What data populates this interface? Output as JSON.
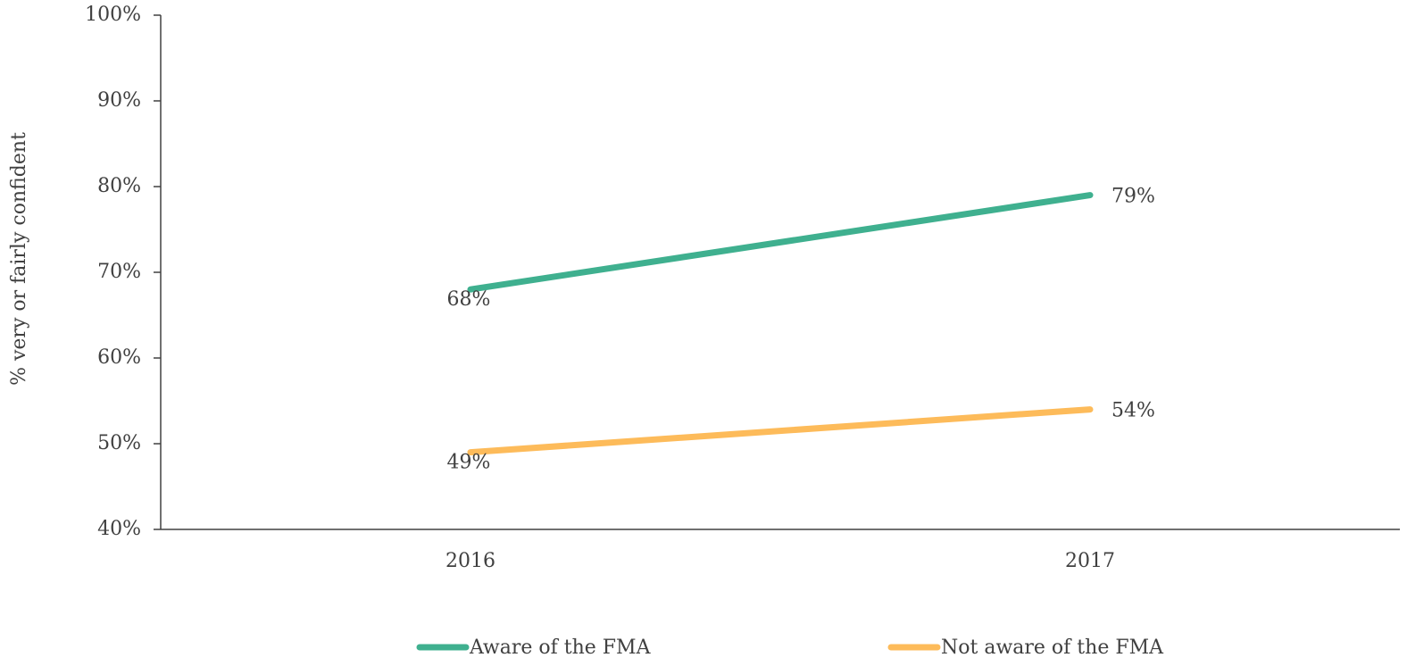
{
  "chart_data": {
    "type": "line",
    "y_label": "% very or fairly confident",
    "categories": [
      "2016",
      "2017"
    ],
    "series": [
      {
        "name": "Aware of the FMA",
        "color": "#3fb08f",
        "values": [
          68,
          79
        ],
        "value_labels": [
          "68%",
          "79%"
        ]
      },
      {
        "name": "Not aware of the FMA",
        "color": "#fdbb5a",
        "values": [
          49,
          54
        ],
        "value_labels": [
          "49%",
          "54%"
        ]
      }
    ],
    "ylim": [
      40,
      100
    ],
    "yticks": [
      {
        "value": 40,
        "label": "40%"
      },
      {
        "value": 50,
        "label": "50%"
      },
      {
        "value": 60,
        "label": "60%"
      },
      {
        "value": 70,
        "label": "70%"
      },
      {
        "value": 80,
        "label": "80%"
      },
      {
        "value": 90,
        "label": "90%"
      },
      {
        "value": 100,
        "label": "100%"
      }
    ],
    "legend": "bottom"
  }
}
